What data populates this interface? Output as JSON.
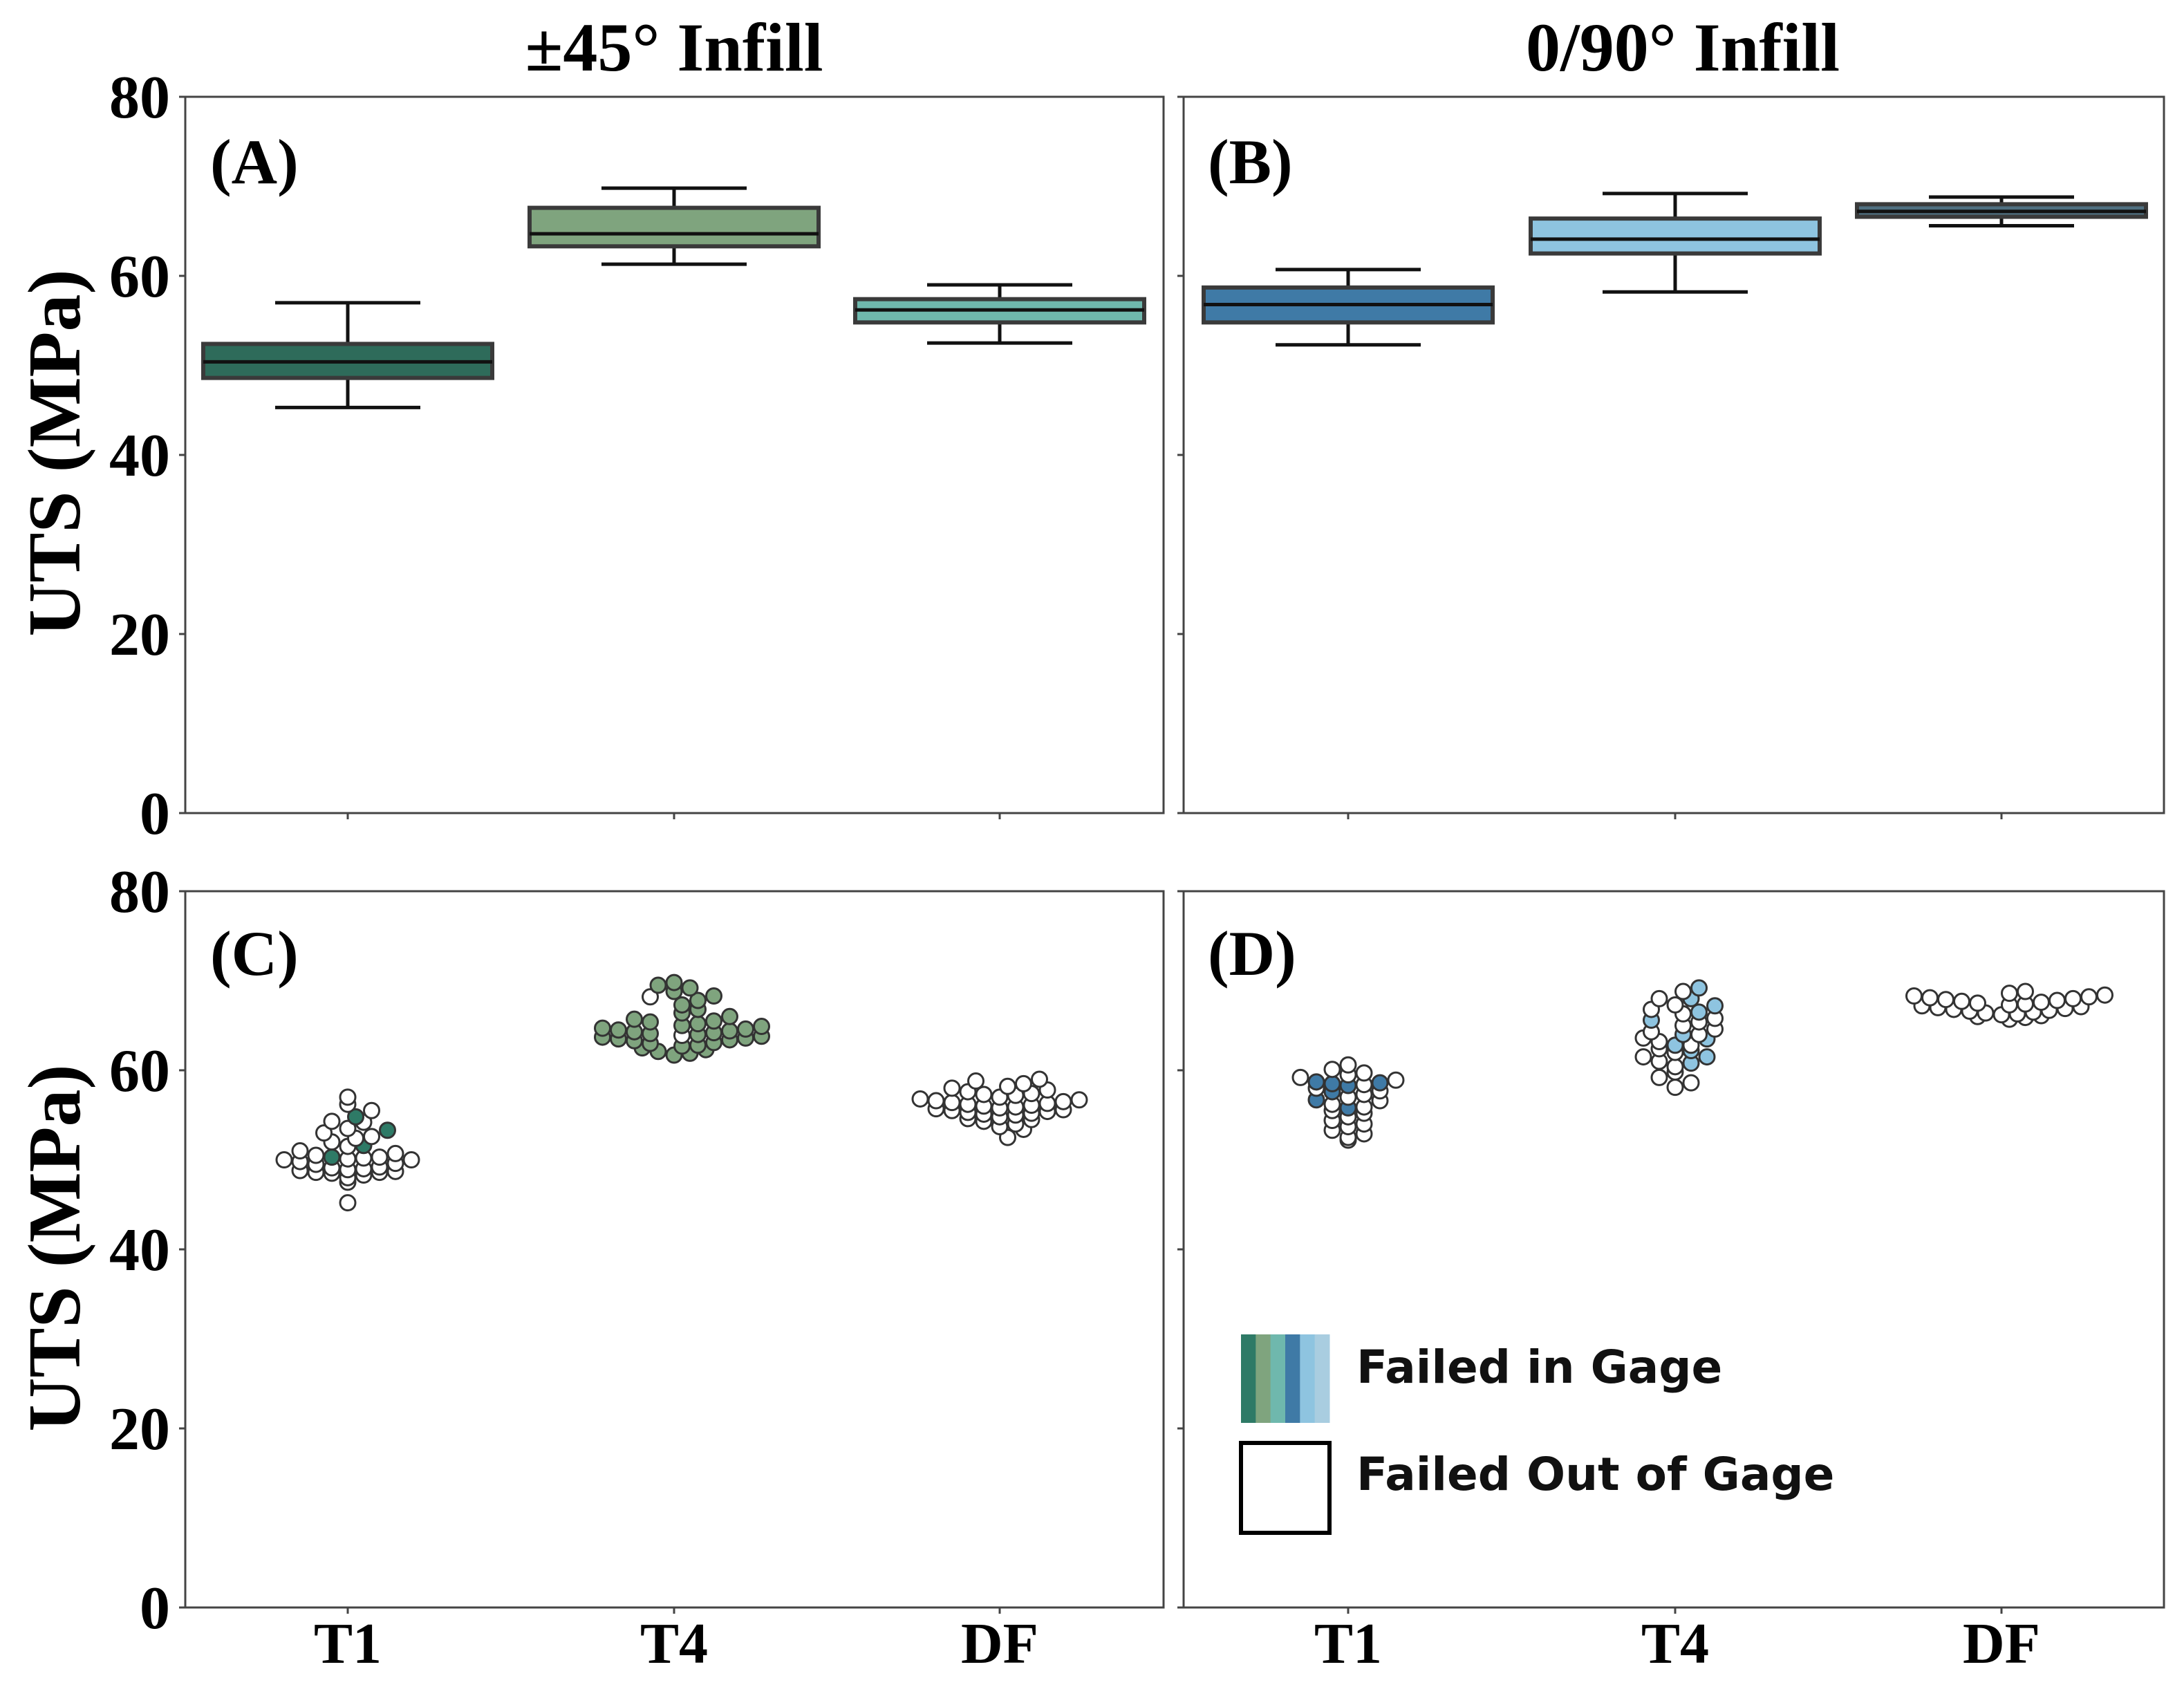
{
  "column_titles": [
    "±45° Infill",
    "0/90° Infill"
  ],
  "y_axis_label": "UTS (MPa)",
  "y_ticks": [
    "0",
    "20",
    "40",
    "60",
    "80"
  ],
  "x_tick_labels": [
    "T1",
    "T4",
    "DF"
  ],
  "panels": {
    "a": "(A)",
    "b": "(B)",
    "c": "(C)",
    "d": "(D)"
  },
  "legend": {
    "in_gage": "Failed in Gage",
    "out_gage": "Failed Out of Gage",
    "swatch_colors": [
      "#2e7a66",
      "#7fa47e",
      "#6fb8ad",
      "#3f7aa6",
      "#8ec4e0",
      "#a9cde0"
    ]
  },
  "chart_data": [
    {
      "type": "box",
      "panel": "(A)",
      "title": "±45° Infill",
      "ylabel": "UTS (MPa)",
      "ylim": [
        0,
        80
      ],
      "categories": [
        "T1",
        "T4",
        "DF"
      ],
      "colors": [
        "#2e6b5a",
        "#7fa47e",
        "#6fb8ad"
      ],
      "boxes": [
        {
          "whisker_low": 45.3,
          "q1": 48.6,
          "median": 50.4,
          "q3": 52.4,
          "whisker_high": 57.0
        },
        {
          "whisker_low": 61.3,
          "q1": 63.3,
          "median": 64.7,
          "q3": 67.6,
          "whisker_high": 69.8
        },
        {
          "whisker_low": 52.5,
          "q1": 54.8,
          "median": 56.2,
          "q3": 57.4,
          "whisker_high": 59.0
        }
      ]
    },
    {
      "type": "box",
      "panel": "(B)",
      "title": "0/90° Infill",
      "ylim": [
        0,
        80
      ],
      "categories": [
        "T1",
        "T4",
        "DF"
      ],
      "colors": [
        "#3f7aa6",
        "#8ec4e0",
        "#4f6f80"
      ],
      "boxes": [
        {
          "whisker_low": 52.3,
          "q1": 54.8,
          "median": 56.8,
          "q3": 58.7,
          "whisker_high": 60.7
        },
        {
          "whisker_low": 58.2,
          "q1": 62.5,
          "median": 64.1,
          "q3": 66.4,
          "whisker_high": 69.2
        },
        {
          "whisker_low": 65.6,
          "q1": 66.6,
          "median": 67.2,
          "q3": 68.0,
          "whisker_high": 68.8
        }
      ]
    },
    {
      "type": "scatter",
      "panel": "(C)",
      "ylabel": "UTS (MPa)",
      "ylim": [
        0,
        80
      ],
      "categories": [
        "T1",
        "T4",
        "DF"
      ],
      "colors": [
        "#2e7a66",
        "#7fa47e",
        "#6fb8ad"
      ],
      "groups": [
        {
          "category": "T1",
          "failed_in_gage": [
            50.3,
            53.3,
            54.8,
            51.6
          ],
          "failed_out_of_gage": [
            45.2,
            47.5,
            48.0,
            48.3,
            48.5,
            48.6,
            48.6,
            48.7,
            48.8,
            48.9,
            49.0,
            49.1,
            49.2,
            49.5,
            49.6,
            49.8,
            50.0,
            50.0,
            50.1,
            50.2,
            50.3,
            50.5,
            50.7,
            51.0,
            51.5,
            52.0,
            52.4,
            52.6,
            53.0,
            53.5,
            54.2,
            54.3,
            55.5,
            56.2,
            57.0
          ]
        },
        {
          "category": "T4",
          "failed_in_gage": [
            61.7,
            61.9,
            62.1,
            62.3,
            62.5,
            62.7,
            62.8,
            63.0,
            63.1,
            63.3,
            63.4,
            63.5,
            63.6,
            63.7,
            63.8,
            64.0,
            64.1,
            64.2,
            64.3,
            64.4,
            64.5,
            64.6,
            64.7,
            64.9,
            65.0,
            65.2,
            65.4,
            65.5,
            65.7,
            66.0,
            66.4,
            66.8,
            67.3,
            67.8,
            68.3,
            68.8,
            69.2,
            69.5,
            69.8
          ],
          "failed_out_of_gage": [
            63.9,
            68.2
          ]
        },
        {
          "category": "DF",
          "failed_in_gage": [],
          "failed_out_of_gage": [
            52.5,
            53.4,
            53.7,
            54.0,
            54.3,
            54.5,
            54.6,
            54.8,
            55.0,
            55.1,
            55.2,
            55.3,
            55.4,
            55.5,
            55.6,
            55.7,
            55.8,
            55.9,
            56.0,
            56.1,
            56.2,
            56.3,
            56.4,
            56.5,
            56.6,
            56.7,
            56.8,
            57.0,
            57.2,
            57.3,
            57.4,
            57.6,
            57.8,
            58.0,
            58.2,
            58.5,
            58.8,
            59.0
          ]
        }
      ]
    },
    {
      "type": "scatter",
      "panel": "(D)",
      "ylim": [
        0,
        80
      ],
      "categories": [
        "T1",
        "T4",
        "DF"
      ],
      "colors": [
        "#3f7aa6",
        "#8ec4e0",
        "#4f6f80"
      ],
      "groups": [
        {
          "category": "T1",
          "failed_in_gage": [
            55.8,
            56.7,
            57.6,
            58.3,
            58.5,
            58.6,
            58.7
          ],
          "failed_out_of_gage": [
            52.2,
            52.5,
            52.9,
            53.3,
            53.7,
            54.0,
            54.4,
            54.8,
            55.2,
            55.5,
            55.9,
            56.2,
            56.6,
            57.0,
            57.3,
            57.7,
            58.0,
            58.4,
            58.9,
            59.2,
            59.5,
            59.7,
            60.1,
            60.6
          ]
        },
        {
          "category": "T4",
          "failed_in_gage": [
            60.8,
            61.5,
            62.2,
            62.8,
            63.5,
            64.0,
            65.6,
            66.5,
            67.2,
            68.0,
            69.2
          ],
          "failed_out_of_gage": [
            58.1,
            58.6,
            59.2,
            59.8,
            60.4,
            61.0,
            61.5,
            62.0,
            62.4,
            62.8,
            63.2,
            63.6,
            64.0,
            64.3,
            64.6,
            65.0,
            65.4,
            65.8,
            66.3,
            66.8,
            67.3,
            68.0,
            68.8
          ]
        },
        {
          "category": "DF",
          "failed_in_gage": [],
          "failed_out_of_gage": [
            65.7,
            65.9,
            66.0,
            66.1,
            66.2,
            66.3,
            66.4,
            66.5,
            66.6,
            66.7,
            66.8,
            66.9,
            67.0,
            67.1,
            67.2,
            67.3,
            67.4,
            67.5,
            67.6,
            67.7,
            67.8,
            67.9,
            68.0,
            68.1,
            68.2,
            68.3,
            68.4,
            68.6,
            68.8
          ]
        }
      ]
    }
  ]
}
